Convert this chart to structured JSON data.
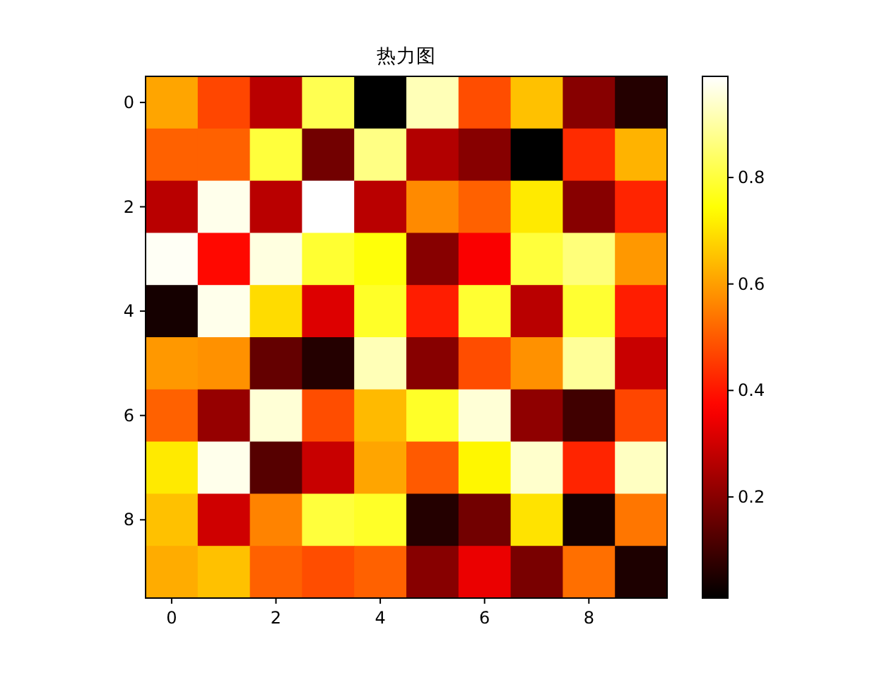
{
  "chart_data": {
    "type": "heatmap",
    "title": "热力图",
    "categories": [
      "0",
      null,
      "2",
      null,
      "4",
      null,
      "6",
      null,
      "8",
      null
    ],
    "y_categories": [
      "0",
      null,
      "2",
      null,
      "4",
      null,
      "6",
      null,
      "8",
      null
    ],
    "cells": [
      [
        0.61,
        0.47,
        0.27,
        0.82,
        0.01,
        0.92,
        0.48,
        0.65,
        0.2,
        0.06
      ],
      [
        0.51,
        0.51,
        0.8,
        0.17,
        0.87,
        0.26,
        0.2,
        0.01,
        0.43,
        0.63
      ],
      [
        0.27,
        0.97,
        0.27,
        0.99,
        0.27,
        0.57,
        0.51,
        0.71,
        0.2,
        0.42
      ],
      [
        0.98,
        0.38,
        0.96,
        0.79,
        0.75,
        0.2,
        0.36,
        0.8,
        0.86,
        0.59
      ],
      [
        0.04,
        0.97,
        0.69,
        0.32,
        0.78,
        0.41,
        0.79,
        0.27,
        0.79,
        0.41
      ],
      [
        0.59,
        0.58,
        0.15,
        0.06,
        0.92,
        0.2,
        0.48,
        0.58,
        0.89,
        0.29
      ],
      [
        0.51,
        0.22,
        0.95,
        0.48,
        0.64,
        0.78,
        0.95,
        0.21,
        0.1,
        0.47
      ],
      [
        0.71,
        0.97,
        0.13,
        0.29,
        0.61,
        0.5,
        0.73,
        0.94,
        0.42,
        0.93
      ],
      [
        0.65,
        0.3,
        0.56,
        0.8,
        0.78,
        0.06,
        0.17,
        0.7,
        0.04,
        0.54
      ],
      [
        0.62,
        0.65,
        0.51,
        0.48,
        0.51,
        0.2,
        0.34,
        0.18,
        0.53,
        0.05
      ]
    ],
    "clim": [
      0.01,
      0.99
    ],
    "cticks": [
      0.2,
      0.4,
      0.6,
      0.8
    ]
  }
}
